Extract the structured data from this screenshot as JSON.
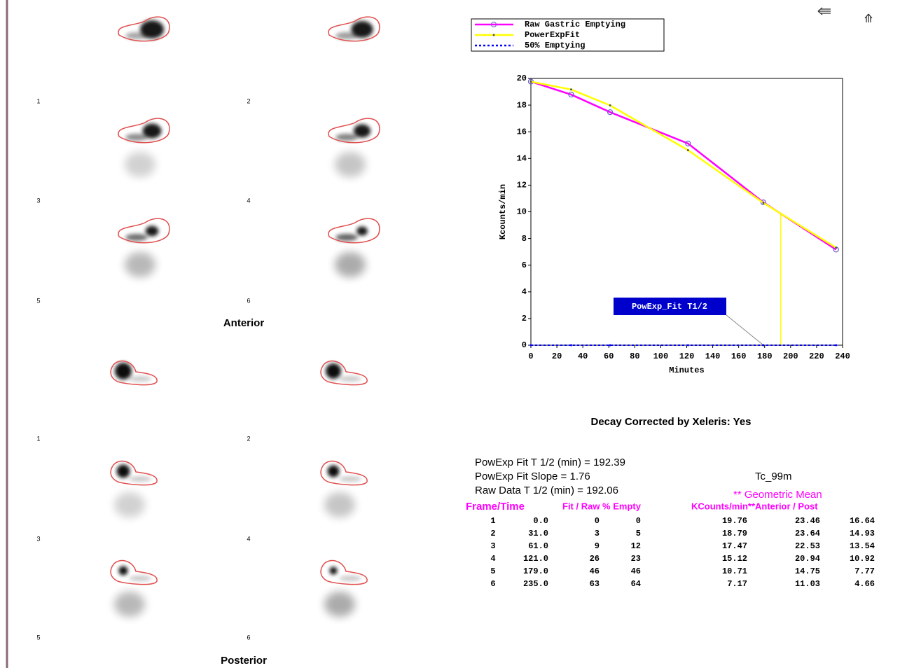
{
  "chart_data": {
    "type": "line",
    "x": [
      0,
      31,
      61,
      121,
      179,
      235
    ],
    "series": [
      {
        "name": "Raw Gastric Emptying",
        "color": "#ff00ff",
        "values": [
          19.76,
          18.79,
          17.47,
          15.12,
          10.71,
          7.17
        ]
      },
      {
        "name": "PowerExpFit",
        "color": "#ffff00",
        "values": [
          19.76,
          19.17,
          17.98,
          14.62,
          10.67,
          7.31
        ]
      },
      {
        "name": "50% Emptying",
        "color": "#0000ff",
        "values": [
          0,
          0,
          0,
          0,
          0,
          0
        ]
      }
    ],
    "half_time_line": {
      "x": 192.39,
      "y": 9.88
    },
    "annotation": "PowExp_Fit T1/2",
    "xlabel": "Minutes",
    "ylabel": "Kcounts/min",
    "xlim": [
      0,
      240
    ],
    "xticks": [
      0,
      20,
      40,
      60,
      80,
      100,
      120,
      140,
      160,
      180,
      200,
      220,
      240
    ],
    "ylim": [
      0,
      20
    ],
    "yticks": [
      0,
      2,
      4,
      6,
      8,
      10,
      12,
      14,
      16,
      18,
      20
    ],
    "legend": "top-left"
  },
  "anterior": {
    "label": "Anterior",
    "frames": [
      "1",
      "2",
      "3",
      "4",
      "5",
      "6"
    ]
  },
  "posterior": {
    "label": "Posterior",
    "frames": [
      "1",
      "2",
      "3",
      "4",
      "5",
      "6"
    ]
  },
  "decay_note": "Decay Corrected by Xeleris: Yes",
  "summary": [
    "PowExp Fit T 1/2 (min) = 192.39",
    "PowExp Fit Slope = 1.76",
    "Raw Data T 1/2 (min) = 192.06"
  ],
  "isotope": "Tc_99m",
  "geometric_mean": "** Geometric Mean",
  "table": {
    "headers": [
      "Frame/Time",
      "Fit / Raw % Empty",
      "KCounts/min**Anterior / Post"
    ],
    "rows": [
      [
        "1",
        "0.0",
        "0",
        "0",
        "19.76",
        "23.46",
        "16.64"
      ],
      [
        "2",
        "31.0",
        "3",
        "5",
        "18.79",
        "23.64",
        "14.93"
      ],
      [
        "3",
        "61.0",
        "9",
        "12",
        "17.47",
        "22.53",
        "13.54"
      ],
      [
        "4",
        "121.0",
        "26",
        "23",
        "15.12",
        "20.94",
        "10.92"
      ],
      [
        "5",
        "179.0",
        "46",
        "46",
        "10.71",
        "14.75",
        "7.77"
      ],
      [
        "6",
        "235.0",
        "63",
        "64",
        "7.17",
        "11.03",
        "4.66"
      ]
    ]
  }
}
